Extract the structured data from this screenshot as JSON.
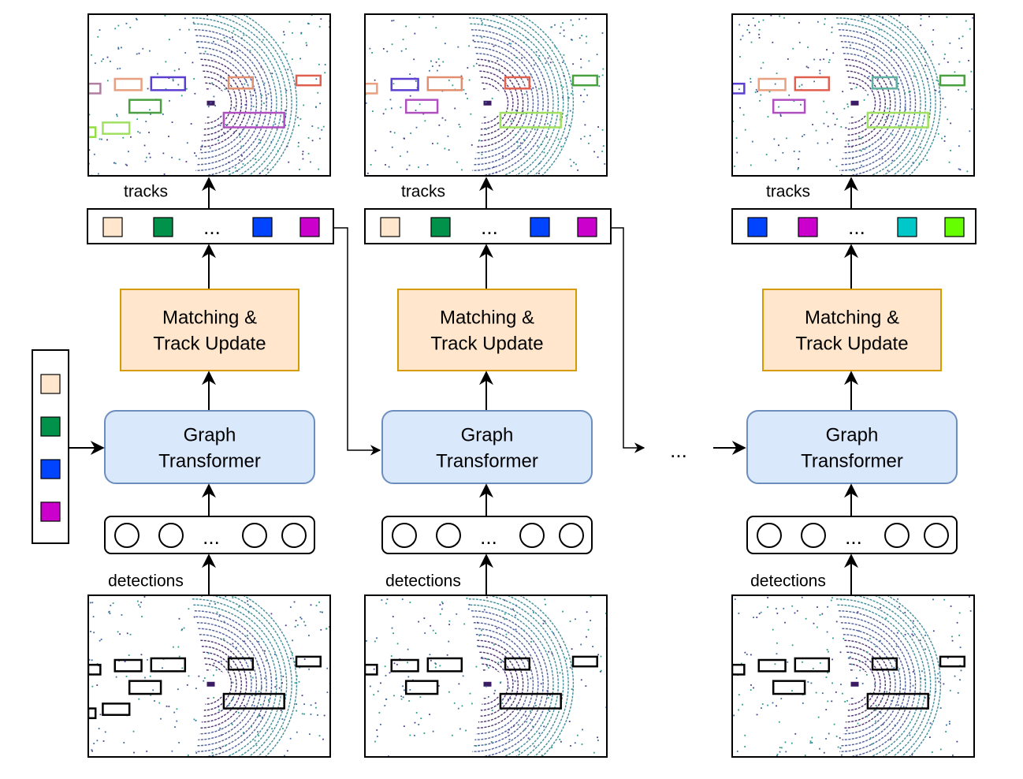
{
  "labels": {
    "tracks": "tracks",
    "detections": "detections",
    "ellipsis": "...",
    "matching_line1": "Matching &",
    "matching_line2": "Track Update",
    "graph_line1": "Graph",
    "graph_line2": "Transformer"
  },
  "colors": {
    "matching_fill": "#ffe6cc",
    "matching_stroke": "#d79b00",
    "graph_fill": "#dae8fc",
    "graph_stroke": "#6c8ebf",
    "line": "#000000"
  },
  "initial_tracks": [
    "#ffe6cc",
    "#00924a",
    "#0044ff",
    "#cc00cc"
  ],
  "stages": [
    {
      "track_colors": [
        "#ffe6cc",
        "#00924a",
        "#0044ff",
        "#cc00cc"
      ],
      "track_boxes": [
        "#b07fa0",
        "#e8a080",
        "#5a3fd0",
        "#e09070",
        "#e06050",
        "#4aa040",
        "#b050c0",
        "#a0e060",
        "#90e040"
      ]
    },
    {
      "track_colors": [
        "#ffe6cc",
        "#00924a",
        "#0044ff",
        "#cc00cc"
      ],
      "track_boxes": [
        "#e8a080",
        "#5a3fd0",
        "#e09070",
        "#e06050",
        "#4aa040",
        "#b050c0",
        "#a0e060"
      ]
    },
    {
      "track_colors": [
        "#0044ff",
        "#cc00cc",
        "#00c8c8",
        "#66ff00"
      ],
      "track_boxes": [
        "#5a3fd0",
        "#e8a080",
        "#e06050",
        "#5fb0a0",
        "#4aa040",
        "#b050c0",
        "#a0e060"
      ]
    }
  ]
}
